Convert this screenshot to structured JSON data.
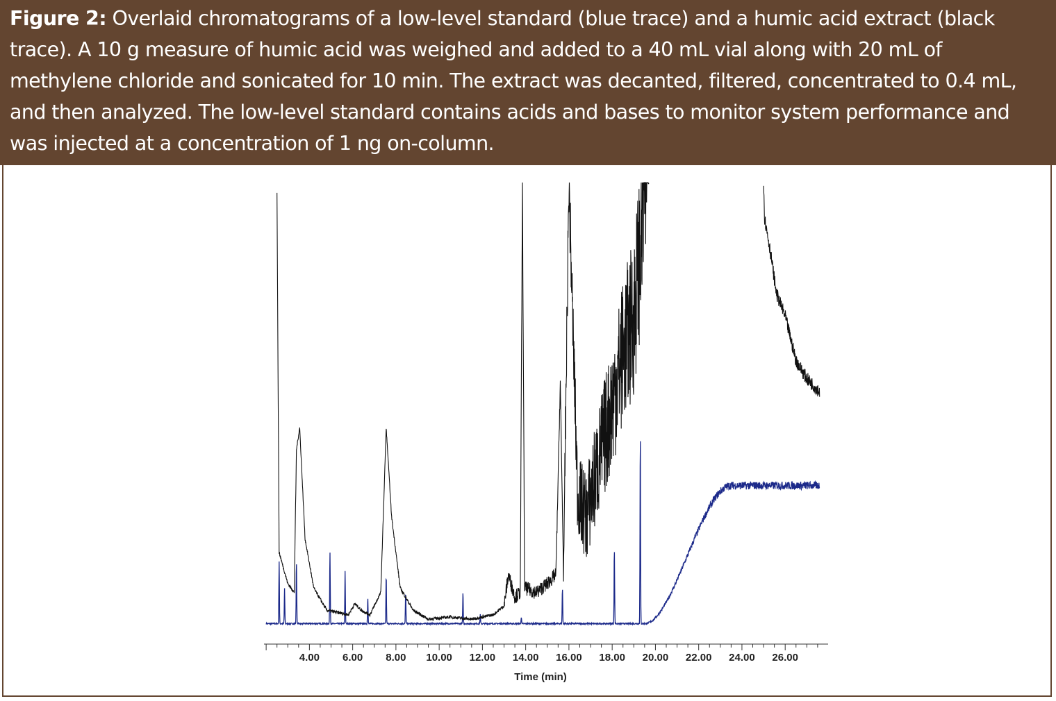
{
  "caption": {
    "label": "Figure 2:",
    "text": " Overlaid chromatograms of a low-level standard (blue trace) and a humic acid extract (black trace). A 10 g measure of humic acid was weighed and added to a 40 mL vial along with 20 mL of methylene chloride and sonicated for 10 min. The extract was decanted, filtered, concentrated to 0.4 mL, and then analyzed. The low-level standard contains acids and bases to monitor system performance and was injected at a concentration of 1 ng on-column."
  },
  "colors": {
    "caption_bg": "#634530",
    "standard": "#1c2a8a",
    "extract": "#111111"
  },
  "chart_data": {
    "type": "line",
    "xlabel": "Time (min)",
    "ylabel": "",
    "xlim": [
      1.9,
      27.6
    ],
    "ylim": [
      0,
      100
    ],
    "x_ticks": [
      "4.00",
      "6.00",
      "8.00",
      "10.00",
      "12.00",
      "14.00",
      "16.00",
      "18.00",
      "20.00",
      "22.00",
      "24.00",
      "26.00"
    ],
    "grid": false,
    "series": [
      {
        "key": "standard",
        "color": "#1c2a8a",
        "baseline": 1,
        "peaks": [
          [
            2.6,
            14
          ],
          [
            2.85,
            8
          ],
          [
            3.4,
            14
          ],
          [
            4.95,
            16
          ],
          [
            5.65,
            12
          ],
          [
            6.7,
            6
          ],
          [
            7.55,
            11
          ],
          [
            8.45,
            7
          ],
          [
            11.1,
            7
          ],
          [
            11.9,
            2
          ],
          [
            13.8,
            1.5
          ],
          [
            15.7,
            8
          ],
          [
            18.1,
            17
          ],
          [
            19.3,
            43
          ]
        ],
        "ramp": {
          "start": 19.5,
          "end": 23.5,
          "level": 31
        }
      },
      {
        "key": "extract",
        "color": "#111111",
        "points": [
          [
            2.5,
            98
          ],
          [
            2.6,
            17
          ],
          [
            3.0,
            10
          ],
          [
            3.3,
            8
          ],
          [
            3.4,
            40
          ],
          [
            3.55,
            45
          ],
          [
            3.8,
            20
          ],
          [
            4.2,
            9
          ],
          [
            4.8,
            4
          ],
          [
            5.8,
            3
          ],
          [
            6.1,
            5.5
          ],
          [
            6.4,
            4
          ],
          [
            6.8,
            3
          ],
          [
            7.3,
            8
          ],
          [
            7.55,
            45
          ],
          [
            7.8,
            25
          ],
          [
            8.2,
            9
          ],
          [
            8.8,
            4
          ],
          [
            9.5,
            2
          ],
          [
            10.5,
            2.5
          ],
          [
            11.5,
            2
          ],
          [
            12.5,
            3
          ],
          [
            13.0,
            5
          ],
          [
            13.2,
            12
          ],
          [
            13.5,
            7
          ],
          [
            13.75,
            8
          ],
          [
            13.85,
            100
          ],
          [
            13.95,
            9
          ],
          [
            14.5,
            8
          ],
          [
            15.0,
            10
          ],
          [
            15.4,
            12
          ],
          [
            15.6,
            55
          ],
          [
            15.75,
            12
          ],
          [
            16.0,
            100
          ],
          [
            16.4,
            30
          ],
          [
            16.8,
            25
          ],
          [
            17.5,
            40
          ],
          [
            18.0,
            50
          ],
          [
            18.4,
            60
          ],
          [
            19.0,
            70
          ],
          [
            19.4,
            90
          ],
          [
            19.5,
            100
          ],
          [
            25.0,
            100
          ],
          [
            25.05,
            92
          ],
          [
            25.3,
            85
          ],
          [
            25.6,
            75
          ],
          [
            26.0,
            70
          ],
          [
            26.5,
            60
          ],
          [
            27.0,
            56
          ],
          [
            27.6,
            53
          ]
        ],
        "clipped_between": [
          19.7,
          25.0
        ]
      }
    ]
  }
}
